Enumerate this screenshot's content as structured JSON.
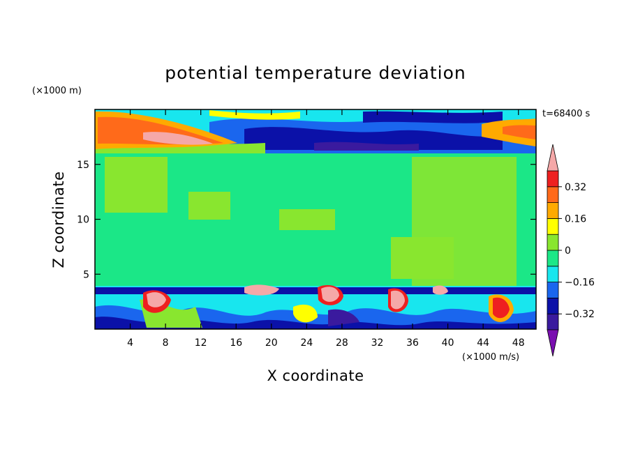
{
  "chart_data": {
    "type": "heatmap",
    "title": "potential temperature deviation",
    "xlabel": "X coordinate",
    "ylabel": "Z coordinate",
    "x_unit": "(×1000 m/s)",
    "y_unit": "(×1000 m)",
    "time_label": "t=68400 s",
    "xlim": [
      0,
      50
    ],
    "ylim": [
      0,
      20
    ],
    "x_ticks": [
      4,
      8,
      12,
      16,
      20,
      24,
      28,
      32,
      36,
      40,
      44,
      48
    ],
    "y_ticks": [
      5,
      10,
      15
    ],
    "colorbar": {
      "levels": [
        -0.4,
        -0.32,
        -0.24,
        -0.16,
        -0.08,
        0,
        0.08,
        0.16,
        0.24,
        0.32,
        0.4
      ],
      "tick_values": [
        0.32,
        0.16,
        0,
        -0.16,
        -0.32
      ],
      "tick_labels": [
        "0.32",
        "0.16",
        "0",
        "−0.16",
        "−0.32"
      ],
      "colors": [
        "#7a0fb0",
        "#3a1a9e",
        "#0b11a8",
        "#1a66ee",
        "#18e6ee",
        "#1be787",
        "#89e62f",
        "#ffff00",
        "#ffaa00",
        "#ff6a1a",
        "#ee2020",
        "#f5a8a8"
      ]
    }
  }
}
